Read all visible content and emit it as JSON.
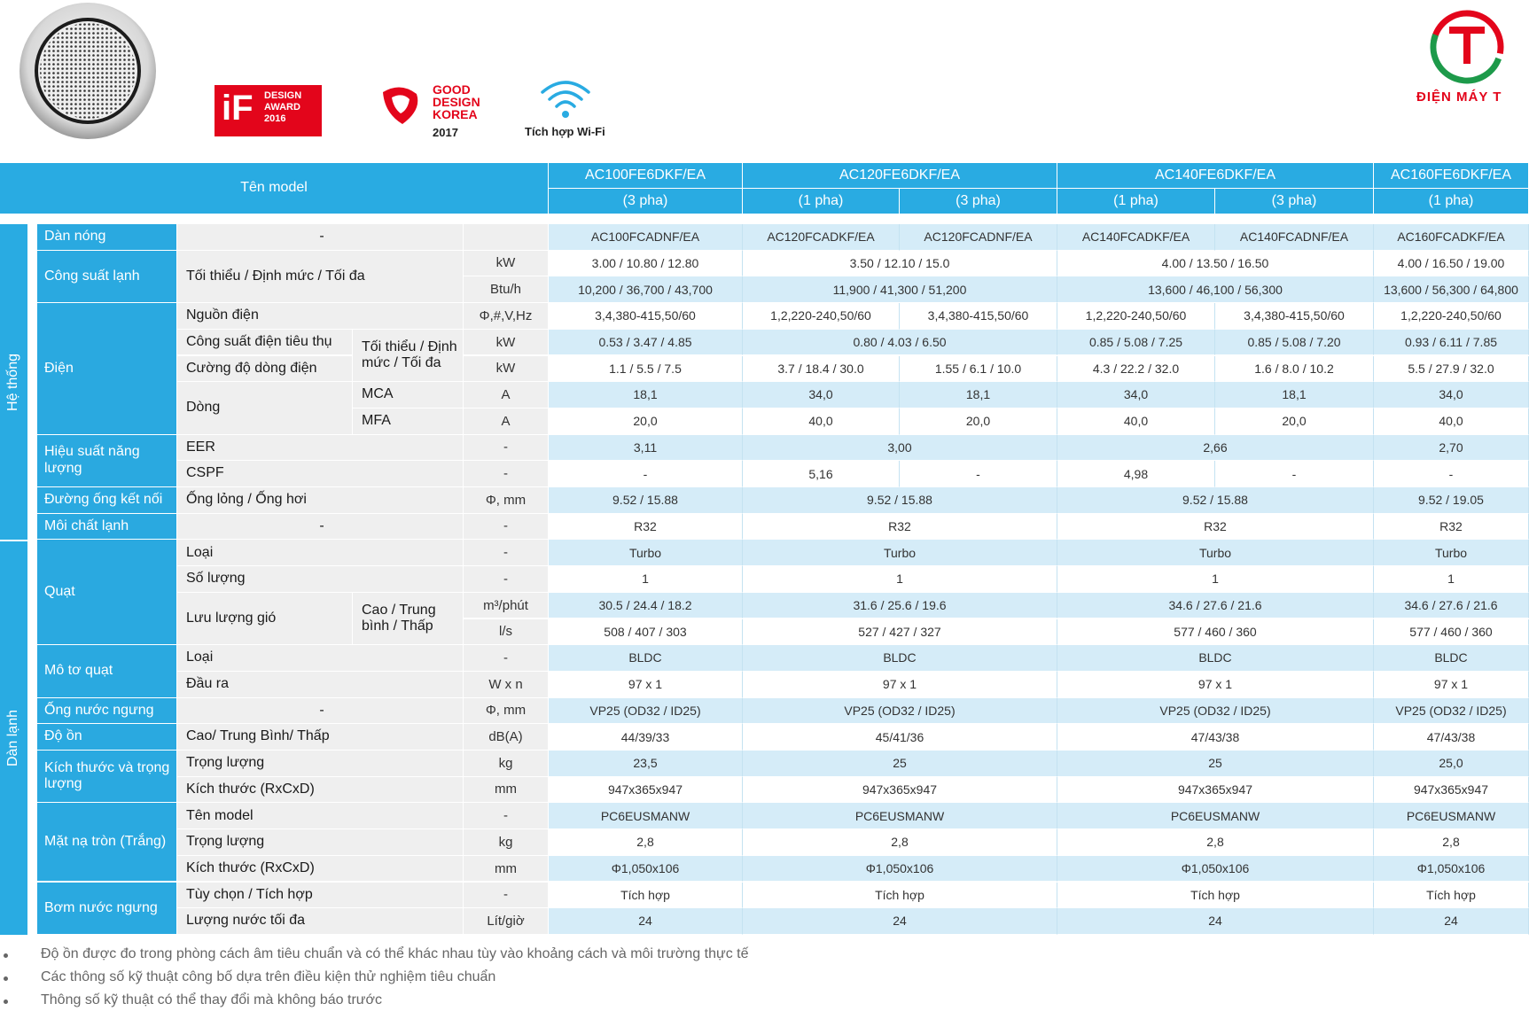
{
  "header": {
    "if_logo": "iF",
    "if_award": [
      "DESIGN",
      "AWARD",
      "2016"
    ],
    "gdk": [
      "GOOD",
      "DESIGN",
      "KOREA"
    ],
    "gdk_year": "2017",
    "wifi": "Tích hợp Wi-Fi",
    "brand": "ĐIỆN MÁY T"
  },
  "table": {
    "model_label": "Tên model",
    "models": [
      {
        "name": "AC100FE6DKF/EA",
        "phases": [
          "(3 pha)"
        ]
      },
      {
        "name": "AC120FE6DKF/EA",
        "phases": [
          "(1 pha)",
          "(3 pha)"
        ]
      },
      {
        "name": "AC140FE6DKF/EA",
        "phases": [
          "(1 pha)",
          "(3 pha)"
        ]
      },
      {
        "name": "AC160FE6DKF/EA",
        "phases": [
          "(1 pha)"
        ]
      }
    ],
    "groups": [
      {
        "label": "Hệ thống",
        "rows": [
          {
            "section": "Dàn nóng",
            "item": "-",
            "values": [
              "AC100FCADNF/EA",
              "AC120FCADKF/EA",
              "AC120FCADNF/EA",
              "AC140FCADKF/EA",
              "AC140FCADNF/EA",
              "AC160FCADKF/EA"
            ]
          },
          {
            "section": "Công suất lạnh",
            "item": "Tối thiểu / Định mức / Tối đa",
            "unit": "kW",
            "values": [
              "3.00 / 10.80 / 12.80",
              "3.50 / 12.10 / 15.0",
              "4.00 / 13.50 / 16.50",
              "4.00 / 16.50 / 19.00"
            ]
          },
          {
            "unit": "Btu/h",
            "values": [
              "10,200 / 36,700 / 43,700",
              "11,900 / 41,300 / 51,200",
              "13,600 / 46,100 / 56,300",
              "13,600 / 56,300 / 64,800"
            ]
          },
          {
            "section": "Điện",
            "item": "Nguồn điện",
            "unit": "Φ,#,V,Hz",
            "values": [
              "3,4,380-415,50/60",
              "1,2,220-240,50/60",
              "3,4,380-415,50/60",
              "1,2,220-240,50/60",
              "3,4,380-415,50/60",
              "1,2,220-240,50/60"
            ]
          },
          {
            "item": "Công suất điện tiêu thụ",
            "detail": "Tối thiểu / Định mức / Tối đa",
            "unit": "kW",
            "values": [
              "0.53 / 3.47 / 4.85",
              "0.80 / 4.03 / 6.50",
              "0.85 / 5.08 / 7.25",
              "0.85 / 5.08 / 7.20",
              "0.93 / 6.11 / 7.85"
            ]
          },
          {
            "item": "Cường độ dòng điện",
            "unit": "kW",
            "values": [
              "1.1 / 5.5 / 7.5",
              "3.7 / 18.4 / 30.0",
              "1.55 / 6.1 / 10.0",
              "4.3 / 22.2 / 32.0",
              "1.6 / 8.0 / 10.2",
              "5.5 / 27.9 / 32.0"
            ]
          },
          {
            "item": "Dòng",
            "detail": "MCA",
            "unit": "A",
            "values": [
              "18,1",
              "34,0",
              "18,1",
              "34,0",
              "18,1",
              "34,0"
            ]
          },
          {
            "detail": "MFA",
            "unit": "A",
            "values": [
              "20,0",
              "40,0",
              "20,0",
              "40,0",
              "20,0",
              "40,0"
            ]
          },
          {
            "section": "Hiệu suất năng lượng",
            "item": "EER",
            "unit": "-",
            "values": [
              "3,11",
              "3,00",
              "2,66",
              "2,70"
            ]
          },
          {
            "item": "CSPF",
            "unit": "-",
            "values": [
              "-",
              "5,16",
              "-",
              "4,98",
              "-",
              "-"
            ]
          },
          {
            "section": "Đường ống kết nối",
            "item": "Ống lỏng / Ống hơi",
            "unit": "Φ, mm",
            "values": [
              "9.52 / 15.88",
              "9.52 / 15.88",
              "9.52 / 15.88",
              "9.52 / 19.05"
            ]
          },
          {
            "section": "Môi chất lạnh",
            "item": "-",
            "unit": "-",
            "values": [
              "R32",
              "R32",
              "R32",
              "R32"
            ]
          }
        ]
      },
      {
        "label": "Dàn lạnh",
        "rows": [
          {
            "section": "Quạt",
            "item": "Loại",
            "unit": "-",
            "values": [
              "Turbo",
              "Turbo",
              "Turbo",
              "Turbo"
            ]
          },
          {
            "item": "Số lượng",
            "unit": "-",
            "values": [
              "1",
              "1",
              "1",
              "1"
            ]
          },
          {
            "item": "Lưu lượng gió",
            "detail": "Cao / Trung bình / Thấp",
            "unit": "m³/phút",
            "values": [
              "30.5 / 24.4 / 18.2",
              "31.6 / 25.6 / 19.6",
              "34.6 / 27.6 / 21.6",
              "34.6 / 27.6 / 21.6"
            ]
          },
          {
            "unit": "l/s",
            "values": [
              "508 / 407 / 303",
              "527 / 427 / 327",
              "577 / 460 / 360",
              "577 / 460 / 360"
            ]
          },
          {
            "section": "Mô tơ quạt",
            "item": "Loại",
            "unit": "-",
            "values": [
              "BLDC",
              "BLDC",
              "BLDC",
              "BLDC"
            ]
          },
          {
            "item": "Đầu ra",
            "unit": "W x n",
            "values": [
              "97 x 1",
              "97 x 1",
              "97 x 1",
              "97 x 1"
            ]
          },
          {
            "section": "Ống nước ngưng",
            "item": "-",
            "unit": "Φ, mm",
            "values": [
              "VP25 (OD32 / ID25)",
              "VP25 (OD32 / ID25)",
              "VP25 (OD32 / ID25)",
              "VP25 (OD32 / ID25)"
            ]
          },
          {
            "section": "Độ ồn",
            "item": "Cao/ Trung Bình/ Thấp",
            "unit": "dB(A)",
            "values": [
              "44/39/33",
              "45/41/36",
              "47/43/38",
              "47/43/38"
            ]
          },
          {
            "section": "Kích thước và trọng lượng",
            "item": "Trọng lượng",
            "unit": "kg",
            "values": [
              "23,5",
              "25",
              "25",
              "25,0"
            ]
          },
          {
            "item": "Kích thước (RxCxD)",
            "unit": "mm",
            "values": [
              "947x365x947",
              "947x365x947",
              "947x365x947",
              "947x365x947"
            ]
          },
          {
            "section": "Mặt nạ tròn (Trắng)",
            "item": "Tên model",
            "unit": "-",
            "values": [
              "PC6EUSMANW",
              "PC6EUSMANW",
              "PC6EUSMANW",
              "PC6EUSMANW"
            ]
          },
          {
            "item": "Trọng lượng",
            "unit": "kg",
            "values": [
              "2,8",
              "2,8",
              "2,8",
              "2,8"
            ]
          },
          {
            "item": "Kích thước (RxCxD)",
            "unit": "mm",
            "values": [
              "Φ1,050x106",
              "Φ1,050x106",
              "Φ1,050x106",
              "Φ1,050x106"
            ]
          },
          {
            "section": "Bơm nước ngưng",
            "item": "Tùy chọn / Tích hợp",
            "unit": "-",
            "values": [
              "Tích hợp",
              "Tích hợp",
              "Tích hợp",
              "Tích hợp"
            ]
          },
          {
            "item": "Lượng nước tối đa",
            "unit": "Lít/giờ",
            "values": [
              "24",
              "24",
              "24",
              "24"
            ]
          }
        ]
      }
    ]
  },
  "notes": [
    "Độ ồn được đo trong phòng cách âm tiêu chuẩn và có thể khác nhau tùy vào khoảng cách và môi trường thực tế",
    "Các thông số kỹ thuật  công bố dựa trên điều kiện thử nghiệm tiêu chuẩn",
    "Thông số kỹ thuật có thể thay đổi mà không báo trước"
  ]
}
